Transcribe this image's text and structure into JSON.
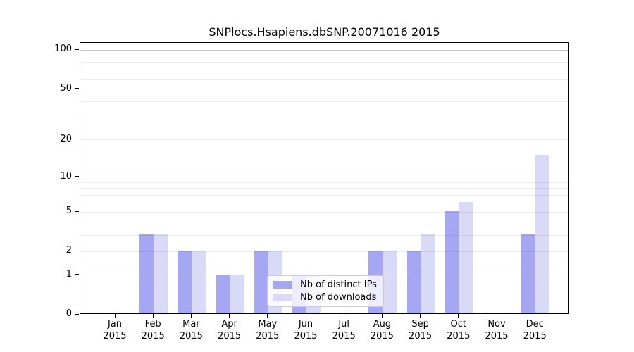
{
  "title": "SNPlocs.Hsapiens.dbSNP.20071016 2015",
  "chart_data": {
    "type": "bar",
    "title": "SNPlocs.Hsapiens.dbSNP.20071016 2015",
    "categories": [
      "Jan",
      "Feb",
      "Mar",
      "Apr",
      "May",
      "Jun",
      "Jul",
      "Aug",
      "Sep",
      "Oct",
      "Nov",
      "Dec"
    ],
    "year": "2015",
    "series": [
      {
        "name": "Nb of distinct IPs",
        "color": "#a6a7f2",
        "values": [
          0,
          3,
          2,
          1,
          2,
          1,
          0,
          2,
          2,
          5,
          0,
          3
        ]
      },
      {
        "name": "Nb of downloads",
        "color": "#d9daf8",
        "values": [
          0,
          3,
          2,
          1,
          2,
          1,
          0,
          2,
          3,
          6,
          0,
          15
        ]
      }
    ],
    "yscale": "log1p",
    "ylim": [
      0,
      100
    ],
    "yticks": [
      0,
      1,
      2,
      5,
      10,
      20,
      50,
      100
    ],
    "ytick_labels": [
      "0",
      "1",
      "2",
      "5",
      "10",
      "20",
      "50",
      "100"
    ],
    "grid_major_decades": [
      1,
      10,
      100
    ],
    "grid_light": [
      2,
      5,
      20,
      50
    ],
    "grid_minor": [
      3,
      4,
      6,
      7,
      8,
      9,
      30,
      40,
      60,
      70,
      80,
      90
    ],
    "grid": true,
    "legend_position": "inside-bottom-center"
  }
}
